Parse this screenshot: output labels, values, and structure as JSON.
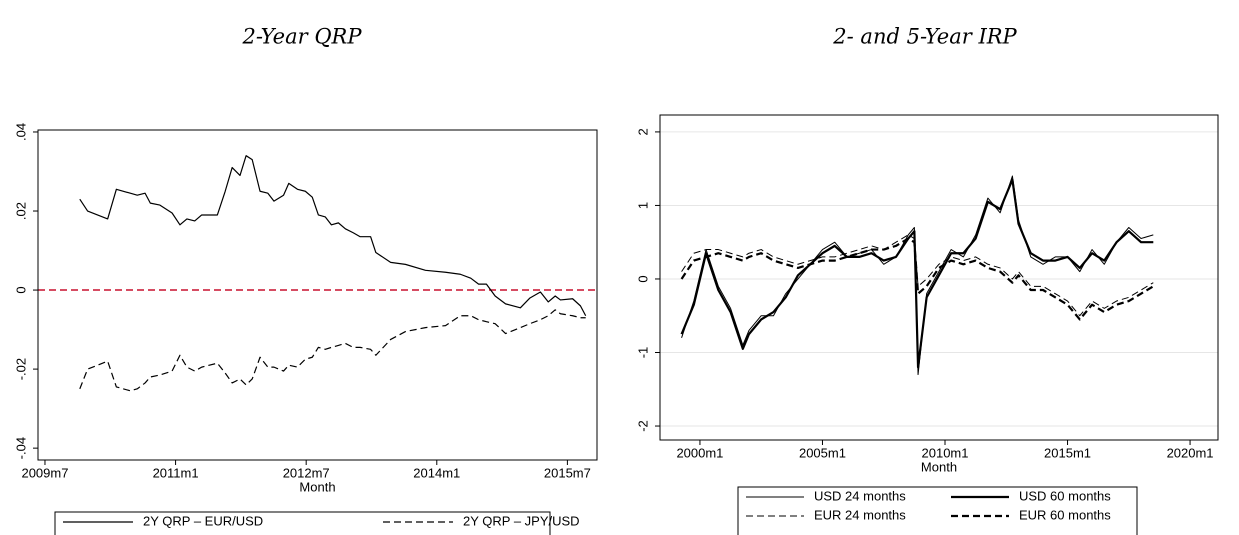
{
  "chart_data": [
    {
      "type": "line",
      "title": "2-Year QRP",
      "xlabel": "Month",
      "legend": "bottom",
      "xlim": [
        2009.42,
        2015.84
      ],
      "ylim": [
        -0.043,
        0.0405
      ],
      "xticks": [
        {
          "value": 2009.5,
          "label": "2009m7"
        },
        {
          "value": 2011.0,
          "label": "2011m1"
        },
        {
          "value": 2012.5,
          "label": "2012m7"
        },
        {
          "value": 2014.0,
          "label": "2014m1"
        },
        {
          "value": 2015.5,
          "label": "2015m7"
        }
      ],
      "yticks": [
        {
          "value": -0.04,
          "label": "-.04"
        },
        {
          "value": -0.02,
          "label": "-.02"
        },
        0,
        {
          "value": 0.02,
          "label": ".02"
        },
        {
          "value": 0.04,
          "label": ".04"
        }
      ],
      "grid": false,
      "hline": {
        "value": 0,
        "color": "#c8102e"
      },
      "x": [
        2009.9,
        2009.99,
        2010.22,
        2010.32,
        2010.48,
        2010.56,
        2010.65,
        2010.71,
        2010.82,
        2010.96,
        2011.05,
        2011.13,
        2011.22,
        2011.3,
        2011.48,
        2011.57,
        2011.65,
        2011.74,
        2011.81,
        2011.88,
        2011.97,
        2012.06,
        2012.13,
        2012.24,
        2012.3,
        2012.4,
        2012.49,
        2012.57,
        2012.64,
        2012.72,
        2012.79,
        2012.87,
        2012.95,
        2013.04,
        2013.12,
        2013.24,
        2013.3,
        2013.47,
        2013.64,
        2013.87,
        2014.1,
        2014.27,
        2014.39,
        2014.48,
        2014.57,
        2014.67,
        2014.79,
        2014.96,
        2015.07,
        2015.19,
        2015.28,
        2015.36,
        2015.42,
        2015.56,
        2015.65,
        2015.71
      ],
      "series": [
        {
          "name": "2Y QRP – EUR/USD",
          "color": "#000000",
          "dash": "solid",
          "width": 1.2,
          "values": [
            0.023,
            0.02,
            0.018,
            0.0255,
            0.0245,
            0.024,
            0.0245,
            0.022,
            0.0215,
            0.0195,
            0.0165,
            0.018,
            0.0175,
            0.019,
            0.019,
            0.025,
            0.031,
            0.029,
            0.034,
            0.033,
            0.025,
            0.0245,
            0.0225,
            0.024,
            0.027,
            0.0255,
            0.025,
            0.0235,
            0.019,
            0.0185,
            0.0165,
            0.017,
            0.0155,
            0.0145,
            0.0135,
            0.0135,
            0.0095,
            0.007,
            0.0065,
            0.005,
            0.0045,
            0.004,
            0.003,
            0.0015,
            0.0015,
            -0.0015,
            -0.0035,
            -0.0045,
            -0.002,
            -0.0005,
            -0.003,
            -0.0015,
            -0.0025,
            -0.0022,
            -0.004,
            -0.0065
          ]
        },
        {
          "name": "2Y QRP – JPY/USD",
          "color": "#000000",
          "dash": "dashed",
          "width": 1.2,
          "values": [
            -0.025,
            -0.02,
            -0.018,
            -0.0245,
            -0.0255,
            -0.025,
            -0.0235,
            -0.022,
            -0.0215,
            -0.0205,
            -0.0165,
            -0.0195,
            -0.0205,
            -0.0195,
            -0.0185,
            -0.021,
            -0.0235,
            -0.0225,
            -0.024,
            -0.0225,
            -0.017,
            -0.0195,
            -0.0195,
            -0.0205,
            -0.019,
            -0.0195,
            -0.0175,
            -0.017,
            -0.0145,
            -0.015,
            -0.0145,
            -0.014,
            -0.0135,
            -0.0145,
            -0.0145,
            -0.015,
            -0.0165,
            -0.0125,
            -0.0105,
            -0.0095,
            -0.009,
            -0.0065,
            -0.0065,
            -0.0075,
            -0.008,
            -0.0085,
            -0.011,
            -0.0095,
            -0.0085,
            -0.0075,
            -0.0065,
            -0.005,
            -0.006,
            -0.0065,
            -0.007,
            -0.007
          ]
        }
      ]
    },
    {
      "type": "line",
      "title": "2- and 5-Year IRP",
      "xlabel": "Month",
      "legend": "bottom",
      "xlim": [
        1998.37,
        2021.14
      ],
      "ylim": [
        -2.19,
        2.23
      ],
      "xticks": [
        {
          "value": 2000,
          "label": "2000m1"
        },
        {
          "value": 2005,
          "label": "2005m1"
        },
        {
          "value": 2010,
          "label": "2010m1"
        },
        {
          "value": 2015,
          "label": "2015m1"
        },
        {
          "value": 2020,
          "label": "2020m1"
        }
      ],
      "yticks": [
        -2,
        -1,
        0,
        1,
        2
      ],
      "grid": true,
      "x": [
        1999.25,
        1999.75,
        2000.25,
        2000.75,
        2001.25,
        2001.75,
        2002.0,
        2002.5,
        2003.0,
        2003.5,
        2004.0,
        2004.5,
        2005.0,
        2005.5,
        2006.0,
        2006.5,
        2007.0,
        2007.5,
        2008.0,
        2008.5,
        2008.75,
        2008.9,
        2009.25,
        2009.75,
        2010.25,
        2010.75,
        2011.25,
        2011.75,
        2012.25,
        2012.75,
        2013.0,
        2013.5,
        2014.0,
        2014.5,
        2015.0,
        2015.5,
        2016.0,
        2016.5,
        2017.0,
        2017.5,
        2018.0,
        2018.5
      ],
      "series": [
        {
          "name": "USD 24 months",
          "color": "#000000",
          "dash": "solid",
          "width": 1,
          "values": [
            -0.8,
            -0.3,
            0.4,
            -0.1,
            -0.4,
            -0.9,
            -0.7,
            -0.5,
            -0.5,
            -0.2,
            0.0,
            0.2,
            0.4,
            0.5,
            0.3,
            0.35,
            0.4,
            0.2,
            0.3,
            0.6,
            0.7,
            -1.3,
            -0.2,
            0.1,
            0.4,
            0.3,
            0.6,
            1.1,
            0.9,
            1.4,
            0.8,
            0.3,
            0.2,
            0.3,
            0.3,
            0.1,
            0.4,
            0.2,
            0.5,
            0.7,
            0.55,
            0.6
          ]
        },
        {
          "name": "USD 60 months",
          "color": "#000000",
          "dash": "solid",
          "width": 2.2,
          "values": [
            -0.75,
            -0.35,
            0.35,
            -0.15,
            -0.45,
            -0.95,
            -0.75,
            -0.55,
            -0.45,
            -0.25,
            0.05,
            0.2,
            0.35,
            0.45,
            0.3,
            0.3,
            0.35,
            0.25,
            0.3,
            0.55,
            0.65,
            -1.2,
            -0.25,
            0.05,
            0.35,
            0.35,
            0.55,
            1.05,
            0.95,
            1.35,
            0.75,
            0.35,
            0.25,
            0.25,
            0.3,
            0.15,
            0.35,
            0.25,
            0.5,
            0.65,
            0.5,
            0.5
          ]
        },
        {
          "name": "EUR 24 months",
          "color": "#000000",
          "dash": "dashed",
          "width": 1,
          "values": [
            0.1,
            0.35,
            0.4,
            0.4,
            0.35,
            0.3,
            0.35,
            0.4,
            0.3,
            0.25,
            0.2,
            0.25,
            0.3,
            0.3,
            0.35,
            0.4,
            0.45,
            0.4,
            0.5,
            0.6,
            0.55,
            -0.1,
            0.0,
            0.2,
            0.3,
            0.25,
            0.3,
            0.2,
            0.15,
            0.0,
            0.1,
            -0.1,
            -0.1,
            -0.2,
            -0.3,
            -0.5,
            -0.3,
            -0.4,
            -0.3,
            -0.25,
            -0.15,
            -0.05
          ]
        },
        {
          "name": "EUR 60 months",
          "color": "#000000",
          "dash": "dashed",
          "width": 2.2,
          "values": [
            0.0,
            0.25,
            0.3,
            0.35,
            0.3,
            0.25,
            0.3,
            0.35,
            0.25,
            0.2,
            0.15,
            0.2,
            0.25,
            0.25,
            0.3,
            0.35,
            0.4,
            0.4,
            0.45,
            0.55,
            0.5,
            -0.2,
            -0.1,
            0.15,
            0.25,
            0.2,
            0.25,
            0.15,
            0.1,
            -0.05,
            0.05,
            -0.15,
            -0.15,
            -0.25,
            -0.35,
            -0.55,
            -0.35,
            -0.45,
            -0.35,
            -0.3,
            -0.2,
            -0.1
          ]
        }
      ]
    }
  ]
}
